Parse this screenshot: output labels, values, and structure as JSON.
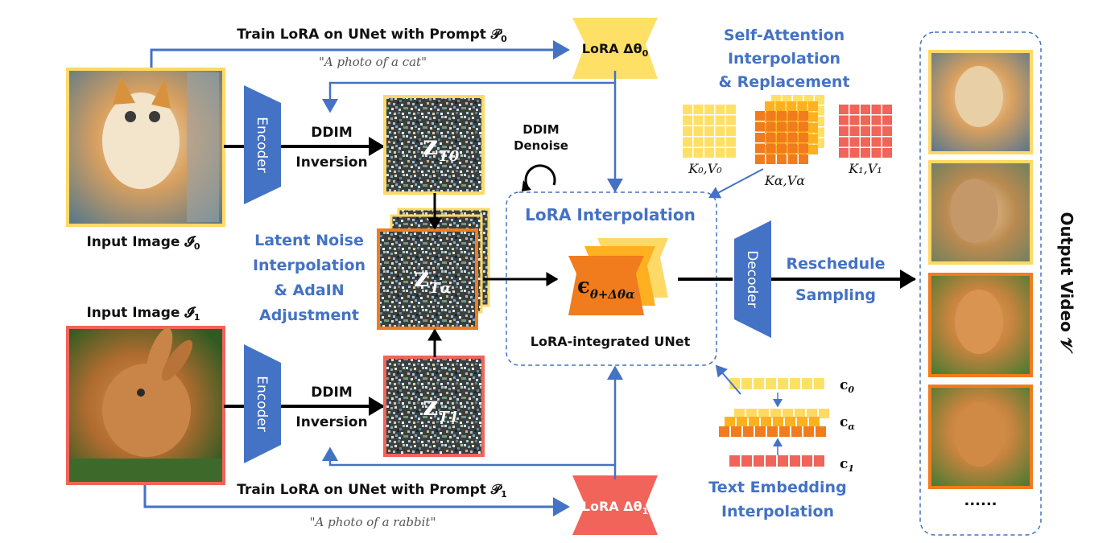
{
  "top_prompt_label": "Train LoRA on UNet with Prompt 𝒫",
  "top_prompt_sub": "0",
  "top_prompt_text": "\"A photo of a cat\"",
  "bottom_prompt_label": "Train LoRA on UNet with Prompt 𝒫",
  "bottom_prompt_sub": "1",
  "bottom_prompt_text": "\"A photo of a rabbit\"",
  "lora0_label": "LoRA Δθ",
  "lora0_sub": "0",
  "lora1_label": "LoRA Δθ",
  "lora1_sub": "1",
  "input0_label": "Input Image 𝓘",
  "input0_sub": "0",
  "input1_label": "Input Image 𝓘",
  "input1_sub": "1",
  "encoder_label": "Encoder",
  "decoder_label": "Decoder",
  "ddim_line1": "DDIM",
  "ddim_line2": "Inversion",
  "ddim_denoise_line1": "DDIM",
  "ddim_denoise_line2": "Denoise",
  "z0_label": "z",
  "z0_sub": "T0",
  "zalpha_label": "z",
  "zalpha_sub": "Tα",
  "z1_label": "z",
  "z1_sub": "T1",
  "latent_line1": "Latent Noise",
  "latent_line2": "Interpolation",
  "latent_line3": "& AdaIN",
  "latent_line4": "Adjustment",
  "lora_interp_title": "LoRA Interpolation",
  "unet_symbol": "ϵ",
  "unet_sub": "θ+Δθα",
  "unet_label": "LoRA-integrated UNet",
  "reschedule_line1": "Reschedule",
  "reschedule_line2": "Sampling",
  "self_attn_line1": "Self-Attention",
  "self_attn_line2": "Interpolation",
  "self_attn_line3": "& Replacement",
  "k0v0": "K₀,V₀",
  "kava": "Kα,Vα",
  "k1v1": "K₁,V₁",
  "c0": "c",
  "c0_sub": "0",
  "calpha": "c",
  "calpha_sub": "α",
  "c1": "c",
  "c1_sub": "1",
  "text_emb_line1": "Text Embedding",
  "text_emb_line2": "Interpolation",
  "output_label": "Output Video 𝓥",
  "ellipsis": "......",
  "colors": {
    "blue": "#4472c4",
    "cat_border": "#ffd966",
    "rabbit_border": "#f0645a",
    "alpha_border": "#f07c1e",
    "lora0_fill": "#ffe066",
    "lora1_fill": "#f0645a"
  },
  "icons": [
    "cat-photo",
    "rabbit-photo",
    "noise-latent",
    "unet-bowtie",
    "attention-grid",
    "loop-arrow"
  ]
}
